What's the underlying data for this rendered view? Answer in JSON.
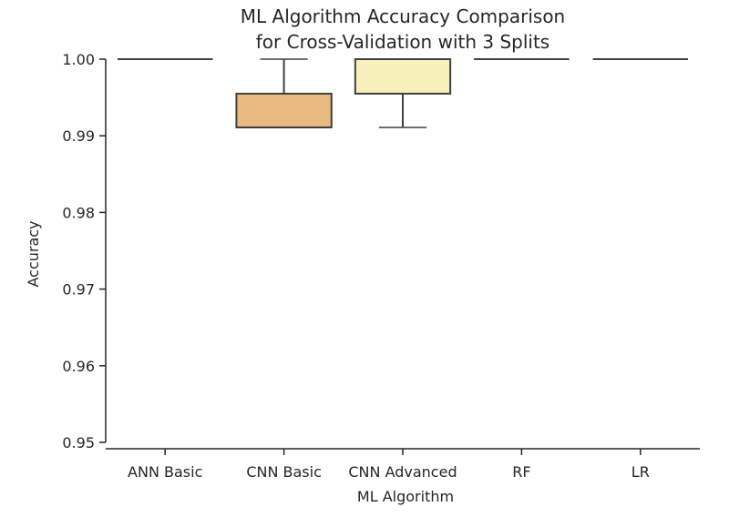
{
  "chart_data": {
    "type": "box",
    "title": [
      "ML Algorithm Accuracy Comparison",
      "for Cross-Validation with 3 Splits"
    ],
    "xlabel": "ML Algorithm",
    "ylabel": "Accuracy",
    "ylim": [
      0.95,
      1.0
    ],
    "yticks": [
      0.95,
      0.96,
      0.97,
      0.98,
      0.99,
      1.0
    ],
    "ytick_labels": [
      "0.95",
      "0.96",
      "0.97",
      "0.98",
      "0.99",
      "1.00"
    ],
    "grid": false,
    "categories": [
      "ANN Basic",
      "CNN Basic",
      "CNN Advanced",
      "RF",
      "LR"
    ],
    "boxes": [
      {
        "category": "ANN Basic",
        "whisker_low": 1.0,
        "q1": 1.0,
        "median": 1.0,
        "q3": 1.0,
        "whisker_high": 1.0,
        "color": "#c26a53"
      },
      {
        "category": "CNN Basic",
        "whisker_low": 0.9911,
        "q1": 0.9911,
        "median": 0.9911,
        "q3": 0.9955,
        "whisker_high": 1.0,
        "color": "#e9bb82"
      },
      {
        "category": "CNN Advanced",
        "whisker_low": 0.9911,
        "q1": 0.9955,
        "median": 1.0,
        "q3": 1.0,
        "whisker_high": 1.0,
        "color": "#f7f0bd"
      },
      {
        "category": "RF",
        "whisker_low": 1.0,
        "q1": 1.0,
        "median": 1.0,
        "q3": 1.0,
        "whisker_high": 1.0,
        "color": "#b8d9b0"
      },
      {
        "category": "LR",
        "whisker_low": 1.0,
        "q1": 1.0,
        "median": 1.0,
        "q3": 1.0,
        "whisker_high": 1.0,
        "color": "#7aaebf"
      }
    ]
  }
}
